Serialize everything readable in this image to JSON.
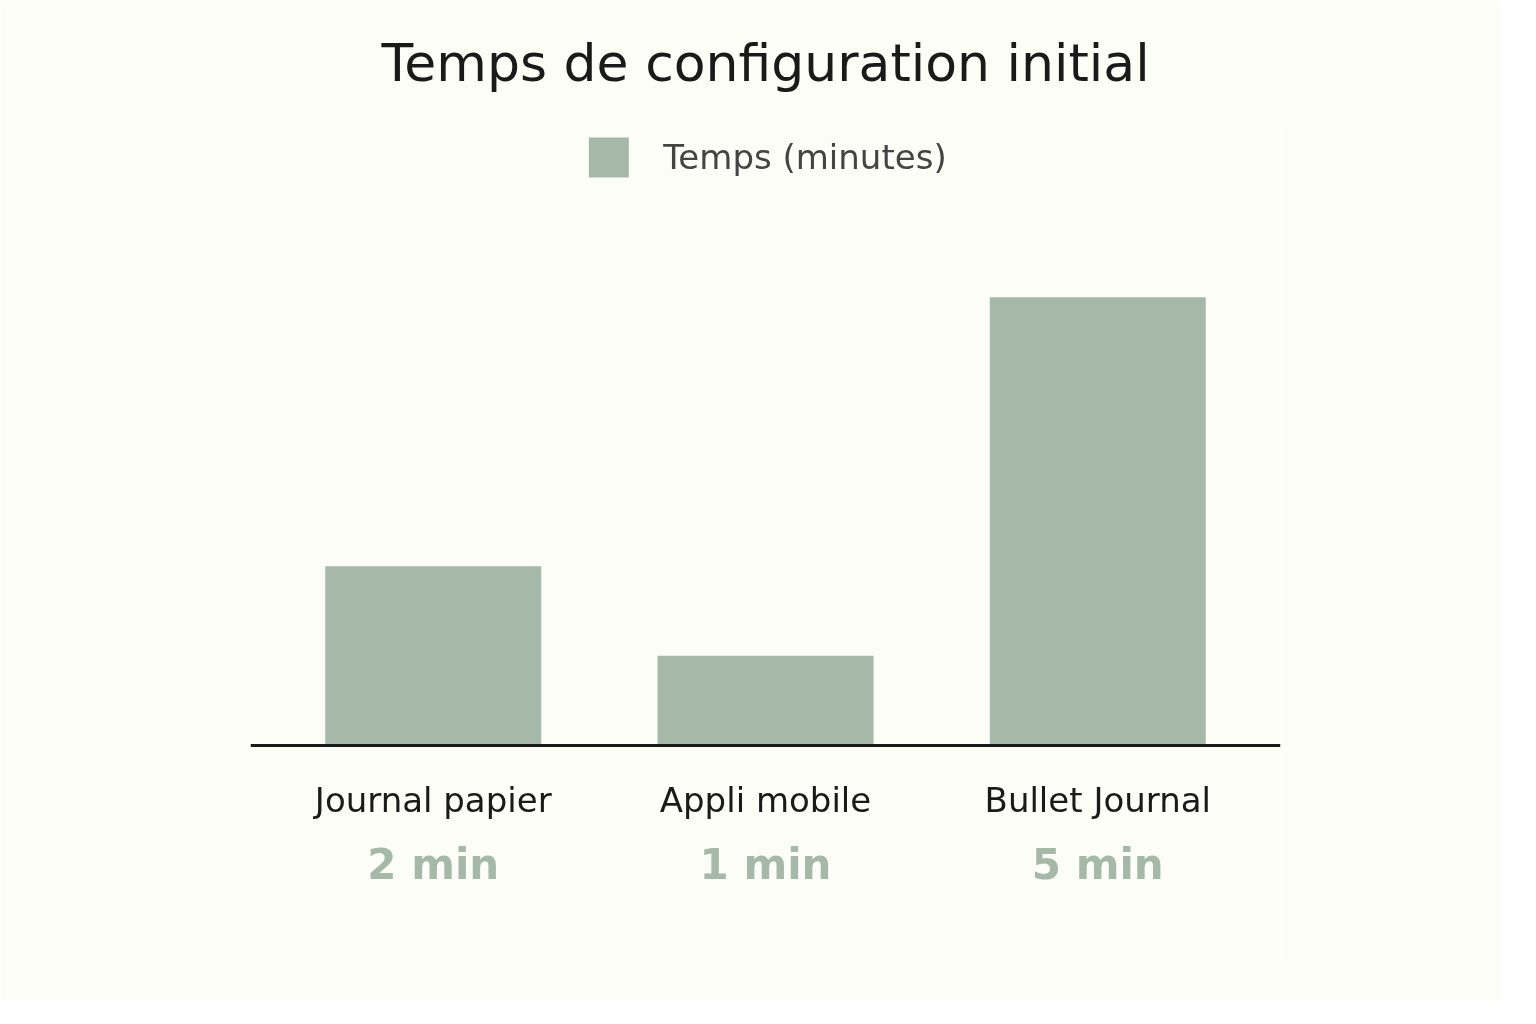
{
  "chart_data": {
    "type": "bar",
    "title": "Temps de configuration initial",
    "categories": [
      "Journal papier",
      "Appli mobile",
      "Bullet Journal"
    ],
    "series": [
      {
        "name": "Temps (minutes)",
        "color": "#a6b9a8",
        "values": [
          2,
          1,
          5
        ],
        "value_labels": [
          "2 min",
          "1 min",
          "5 min"
        ]
      }
    ],
    "legend": "top"
  }
}
